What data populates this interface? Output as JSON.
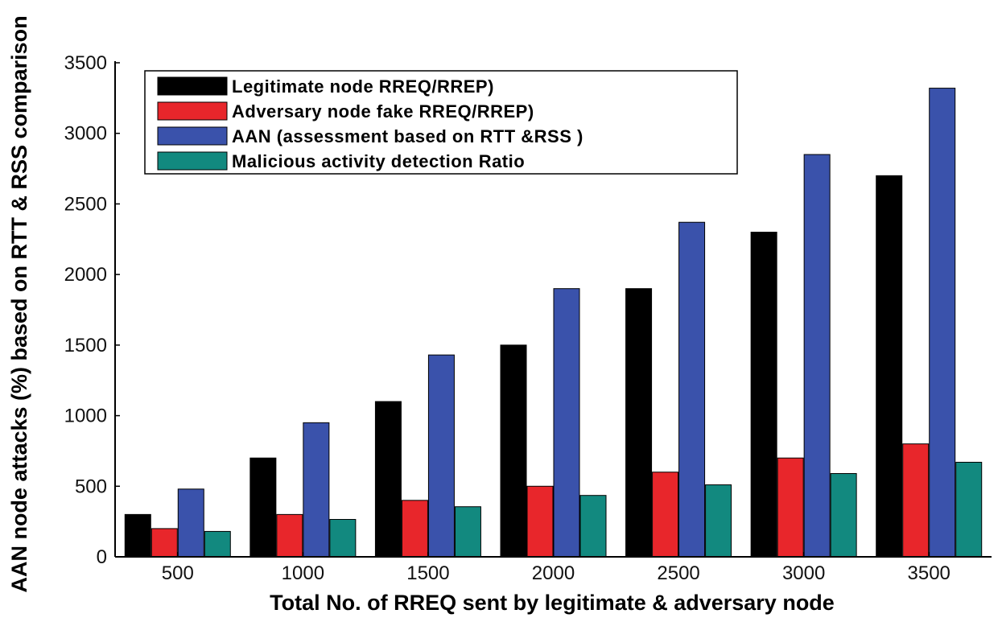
{
  "chart_data": {
    "type": "bar",
    "title": "",
    "xlabel": "Total No. of RREQ sent by legitimate & adversary node",
    "ylabel": "AAN node attacks (%) based on RTT & RSS comparison",
    "categories": [
      "500",
      "1000",
      "1500",
      "2000",
      "2500",
      "3000",
      "3500"
    ],
    "ylim": [
      0,
      3500
    ],
    "yticks": [
      "0",
      "500",
      "1000",
      "1500",
      "2000",
      "2500",
      "3000",
      "3500"
    ],
    "grid": false,
    "legend_position": "top-left",
    "series": [
      {
        "name": "Legitimate node RREQ/RREP)",
        "color": "#000000",
        "values": [
          300,
          700,
          1100,
          1500,
          1900,
          2300,
          2700
        ]
      },
      {
        "name": "Adversary node fake RREQ/RREP)",
        "color": "#e8262b",
        "values": [
          200,
          300,
          400,
          500,
          600,
          700,
          800
        ]
      },
      {
        "name": "AAN (assessment based on RTT &RSS )",
        "color": "#3a52ab",
        "values": [
          480,
          950,
          1430,
          1900,
          2370,
          2850,
          3320
        ]
      },
      {
        "name": "Malicious activity detection Ratio",
        "color": "#12897f",
        "values": [
          180,
          265,
          355,
          435,
          510,
          590,
          670
        ]
      }
    ]
  }
}
